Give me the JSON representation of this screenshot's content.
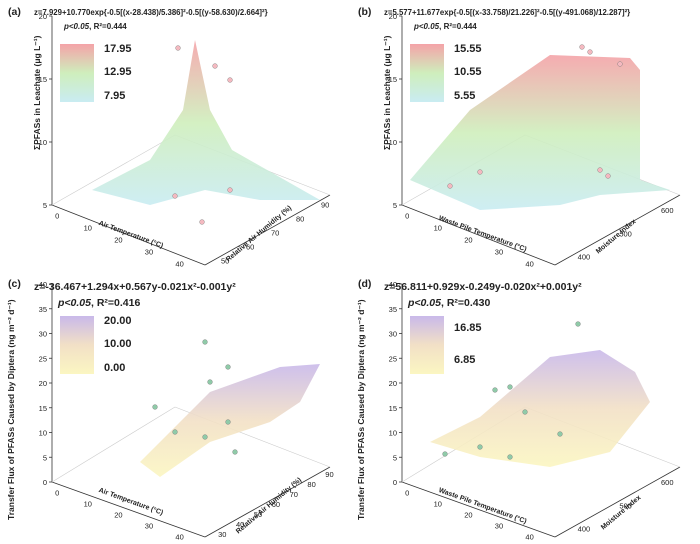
{
  "chart_data": [
    {
      "type": "surface",
      "panel_label": "(a)",
      "equation": "z=7.929+10.770exp{-0.5[(x-28.438)/5.386]²-0.5[(y-58.630)/2.664]²}",
      "significance": "p<0.05",
      "r2_text": ", R²=0.444",
      "zlabel": "ΣPFASs in Leachate (μg L⁻¹)",
      "xlabel": "Air Temperature (°C)",
      "ylabel": "Relative Air Humidity (%)",
      "legend_values": [
        "17.95",
        "12.95",
        "7.95"
      ],
      "colormap": [
        "#f4a3a8",
        "#cfeebc",
        "#c9ecf2"
      ],
      "zticks": [
        "5",
        "10",
        "15",
        "20"
      ],
      "xticks": [
        "0",
        "10",
        "20",
        "30",
        "40"
      ],
      "yticks": [
        "50",
        "60",
        "70",
        "80",
        "90"
      ]
    },
    {
      "type": "surface",
      "panel_label": "(b)",
      "equation": "z=5.577+11.677exp{-0.5[(x-33.758)/21.226]²-0.5[(y-491.068)/12.287]²}",
      "significance": "p<0.05",
      "r2_text": ", R²=0.444",
      "zlabel": "ΣPFASs in Leachate (μg L⁻¹)",
      "xlabel": "Waste Pile Temperature (°C)",
      "ylabel": "Moisture Index",
      "legend_values": [
        "15.55",
        "10.55",
        "5.55"
      ],
      "colormap": [
        "#f4a3a8",
        "#cfeebc",
        "#c9ecf2"
      ],
      "zticks": [
        "5",
        "10",
        "15",
        "20"
      ],
      "xticks": [
        "0",
        "10",
        "20",
        "30",
        "40"
      ],
      "yticks": [
        "400",
        "500",
        "600"
      ]
    },
    {
      "type": "surface",
      "panel_label": "(c)",
      "equation": "z=-36.467+1.294x+0.567y-0.021x²-0.001y²",
      "significance": "p<0.05",
      "r2_text": ", R²=0.416",
      "zlabel": "Transfer Flux of PFASs Caused by Diptera (ng m⁻² d⁻¹)",
      "xlabel": "Air Temperature (°C)",
      "ylabel": "Relative Air Humidity (%)",
      "legend_values": [
        "20.00",
        "10.00",
        "0.00"
      ],
      "colormap": [
        "#c9b9ea",
        "#f2e0c6",
        "#fbf6c2"
      ],
      "zticks": [
        "0",
        "5",
        "10",
        "15",
        "20",
        "25",
        "30",
        "35",
        "40"
      ],
      "xticks": [
        "0",
        "10",
        "20",
        "30",
        "40"
      ],
      "yticks": [
        "30",
        "40",
        "50",
        "60",
        "70",
        "80",
        "90"
      ]
    },
    {
      "type": "surface",
      "panel_label": "(d)",
      "equation": "z=56.811+0.929x-0.249y-0.020x²+0.001y²",
      "significance": "p<0.05",
      "r2_text": ", R²=0.430",
      "zlabel": "Transfer Flux of PFASs Caused by Diptera (ng m⁻² d⁻¹)",
      "xlabel": "Waste Pile Temperature (°C)",
      "ylabel": "Moisture Index",
      "legend_values": [
        "16.85",
        "6.85"
      ],
      "colormap": [
        "#c9b9ea",
        "#f2e0c6",
        "#fbf6c2"
      ],
      "zticks": [
        "0",
        "5",
        "10",
        "15",
        "20",
        "25",
        "30",
        "35",
        "40"
      ],
      "xticks": [
        "0",
        "10",
        "20",
        "30",
        "40"
      ],
      "yticks": [
        "400",
        "500",
        "600"
      ]
    }
  ]
}
